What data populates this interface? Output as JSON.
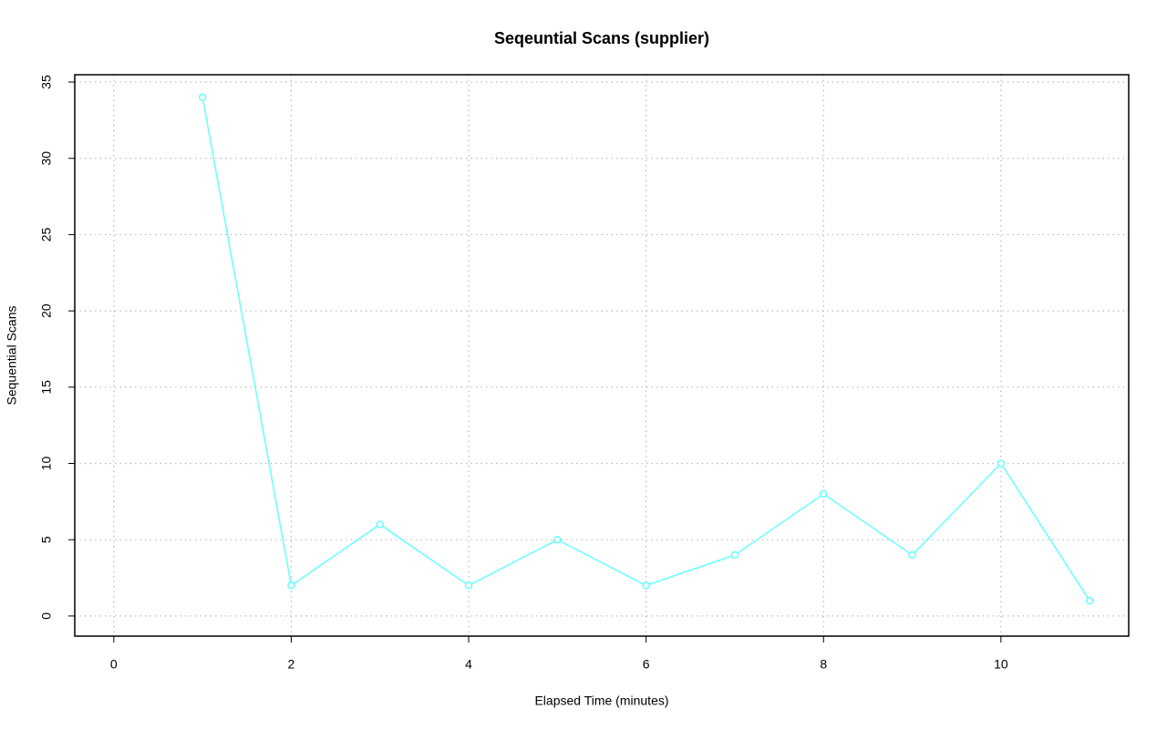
{
  "chart_data": {
    "type": "line",
    "title": "Seqeuntial Scans (supplier)",
    "x_label": "Elapsed Time (minutes)",
    "y_label": "Sequential Scans",
    "x": [
      1,
      2,
      3,
      4,
      5,
      6,
      7,
      8,
      9,
      10,
      11
    ],
    "series": [
      {
        "name": "supplier",
        "color": "#66ffff",
        "values": [
          34,
          2,
          6,
          2,
          5,
          2,
          4,
          8,
          4,
          10,
          1
        ]
      }
    ],
    "xlim": [
      -0.44,
      11.44
    ],
    "xticks": [
      0,
      2,
      4,
      6,
      8,
      10
    ],
    "ylim": [
      -1.32,
      35.48
    ],
    "yticks": [
      0,
      5,
      10,
      15,
      20,
      25,
      30,
      35
    ],
    "grid": true
  }
}
